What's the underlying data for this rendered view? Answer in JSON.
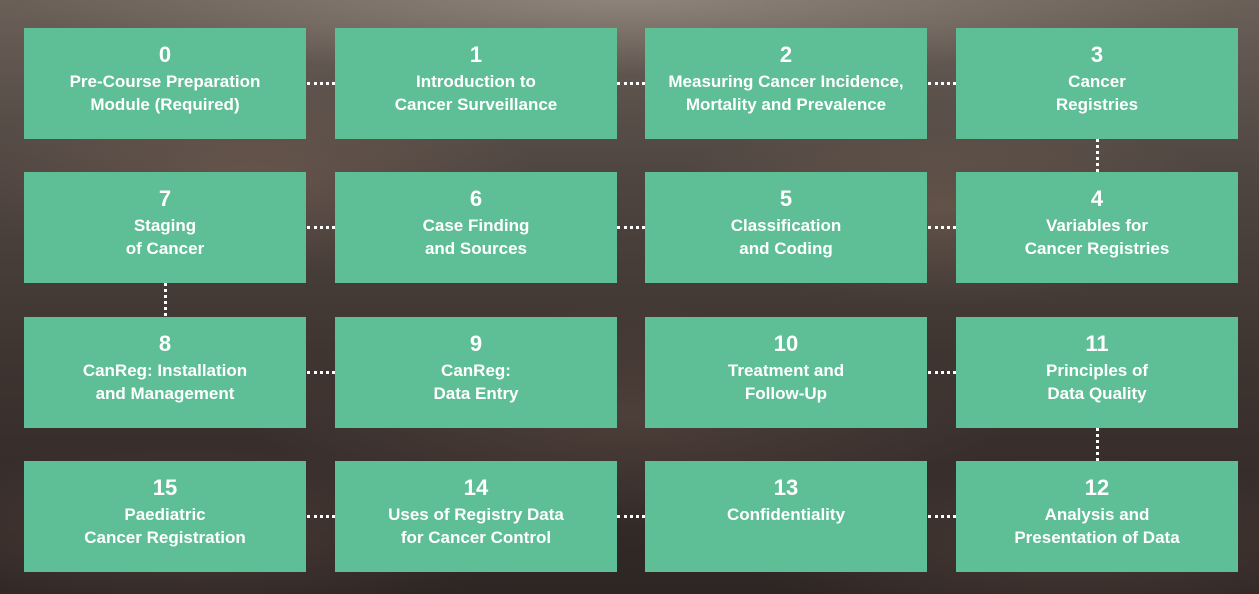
{
  "modules": [
    {
      "number": "0",
      "title": "Pre-Course Preparation\nModule (Required)"
    },
    {
      "number": "1",
      "title": "Introduction to\nCancer Surveillance"
    },
    {
      "number": "2",
      "title": "Measuring Cancer Incidence,\nMortality and Prevalence"
    },
    {
      "number": "3",
      "title": "Cancer\nRegistries"
    },
    {
      "number": "4",
      "title": "Variables for\nCancer Registries"
    },
    {
      "number": "5",
      "title": "Classification\nand Coding"
    },
    {
      "number": "6",
      "title": "Case Finding\nand Sources"
    },
    {
      "number": "7",
      "title": "Staging\nof Cancer"
    },
    {
      "number": "8",
      "title": "CanReg: Installation\nand Management"
    },
    {
      "number": "9",
      "title": "CanReg:\nData Entry"
    },
    {
      "number": "10",
      "title": "Treatment and\nFollow-Up"
    },
    {
      "number": "11",
      "title": "Principles of\nData Quality"
    },
    {
      "number": "12",
      "title": "Analysis and\nPresentation of Data"
    },
    {
      "number": "13",
      "title": "Confidentiality"
    },
    {
      "number": "14",
      "title": "Uses of Registry Data\nfor Cancer Control"
    },
    {
      "number": "15",
      "title": "Paediatric\nCancer Registration"
    }
  ],
  "colors": {
    "tile": "#5ebe95",
    "text": "#ffffff",
    "connector": "#ffffff"
  }
}
